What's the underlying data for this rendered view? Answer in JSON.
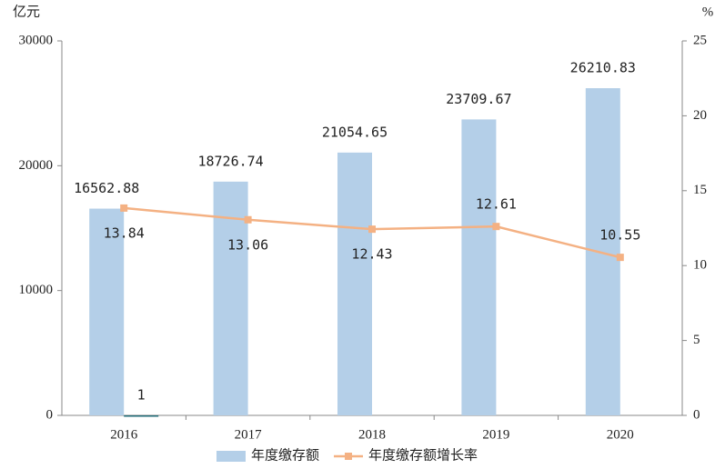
{
  "chart_data": {
    "type": "bar_line",
    "y_label": "亿元",
    "y2_label": "%",
    "categories": [
      "2016",
      "2017",
      "2018",
      "2019",
      "2020"
    ],
    "series": [
      {
        "name": "年度缴存额",
        "type": "bar",
        "color": "#b4cfe8",
        "values": [
          16562.88,
          18726.74,
          21054.65,
          23709.67,
          26210.83
        ],
        "value_labels": [
          "16562.88",
          "18726.74",
          "21054.65",
          "23709.67",
          "26210.83"
        ]
      },
      {
        "type": "bar",
        "color": "#1f6b75",
        "values": [
          1,
          null,
          null,
          null,
          null
        ]
      },
      {
        "name": "年度缴存额增长率",
        "type": "line",
        "axis": "y2",
        "color": "#f4b183",
        "values": [
          13.84,
          13.06,
          12.43,
          12.61,
          10.55
        ],
        "value_labels": [
          "13.84",
          "13.06",
          "12.43",
          "12.61",
          "10.55"
        ]
      }
    ],
    "ylim": [
      0,
      30000
    ],
    "yticks": [
      0,
      10000,
      20000,
      30000
    ],
    "y2lim": [
      0,
      25
    ],
    "y2ticks": [
      0,
      5,
      10,
      15,
      20,
      25
    ],
    "legend": "bottom"
  }
}
